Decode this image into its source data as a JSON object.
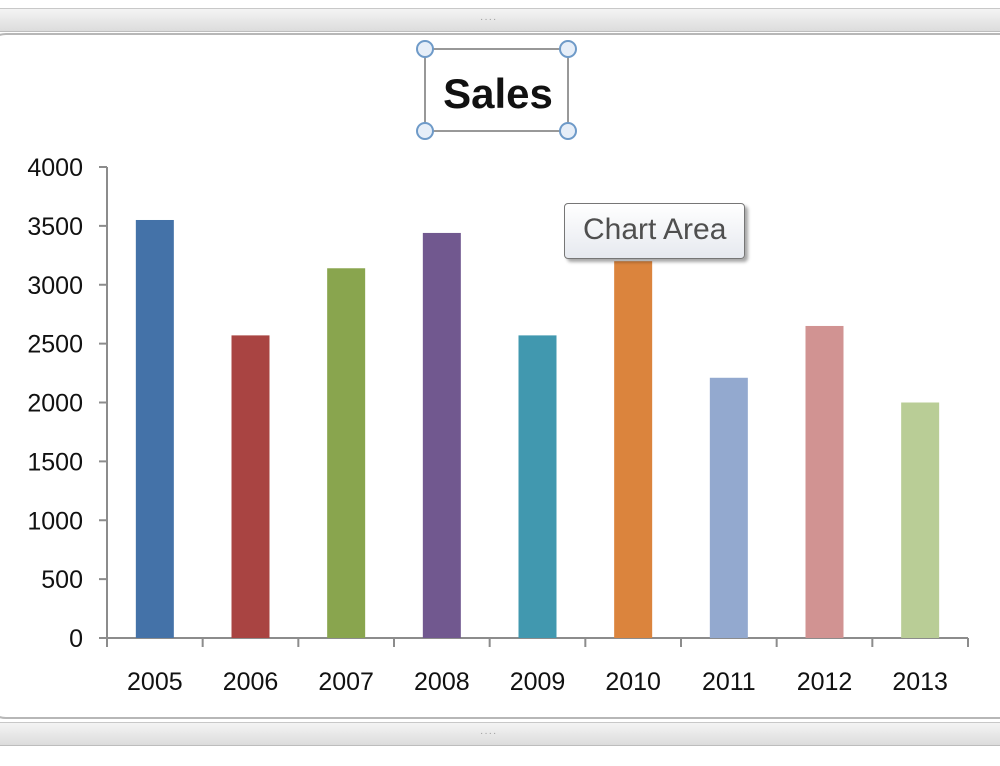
{
  "chart_data": {
    "type": "bar",
    "title": "Sales",
    "categories": [
      "2005",
      "2006",
      "2007",
      "2008",
      "2009",
      "2010",
      "2011",
      "2012",
      "2013"
    ],
    "values": [
      3550,
      2570,
      3140,
      3440,
      2570,
      3200,
      2210,
      2650,
      2000
    ],
    "bar_colors": [
      "#4472A8",
      "#A94442",
      "#89A54E",
      "#71588F",
      "#4198AF",
      "#DB843D",
      "#93A9CF",
      "#D19392",
      "#B9CD96"
    ],
    "ylim": [
      0,
      4000
    ],
    "yticks": [
      0,
      500,
      1000,
      1500,
      2000,
      2500,
      3000,
      3500,
      4000
    ],
    "xlabel": "",
    "ylabel": "",
    "grid": false,
    "legend": "none"
  },
  "tooltip": {
    "text": "Chart Area"
  },
  "colors": {
    "axis": "#8c8c8c",
    "title_handle": "#6e9ac8"
  }
}
